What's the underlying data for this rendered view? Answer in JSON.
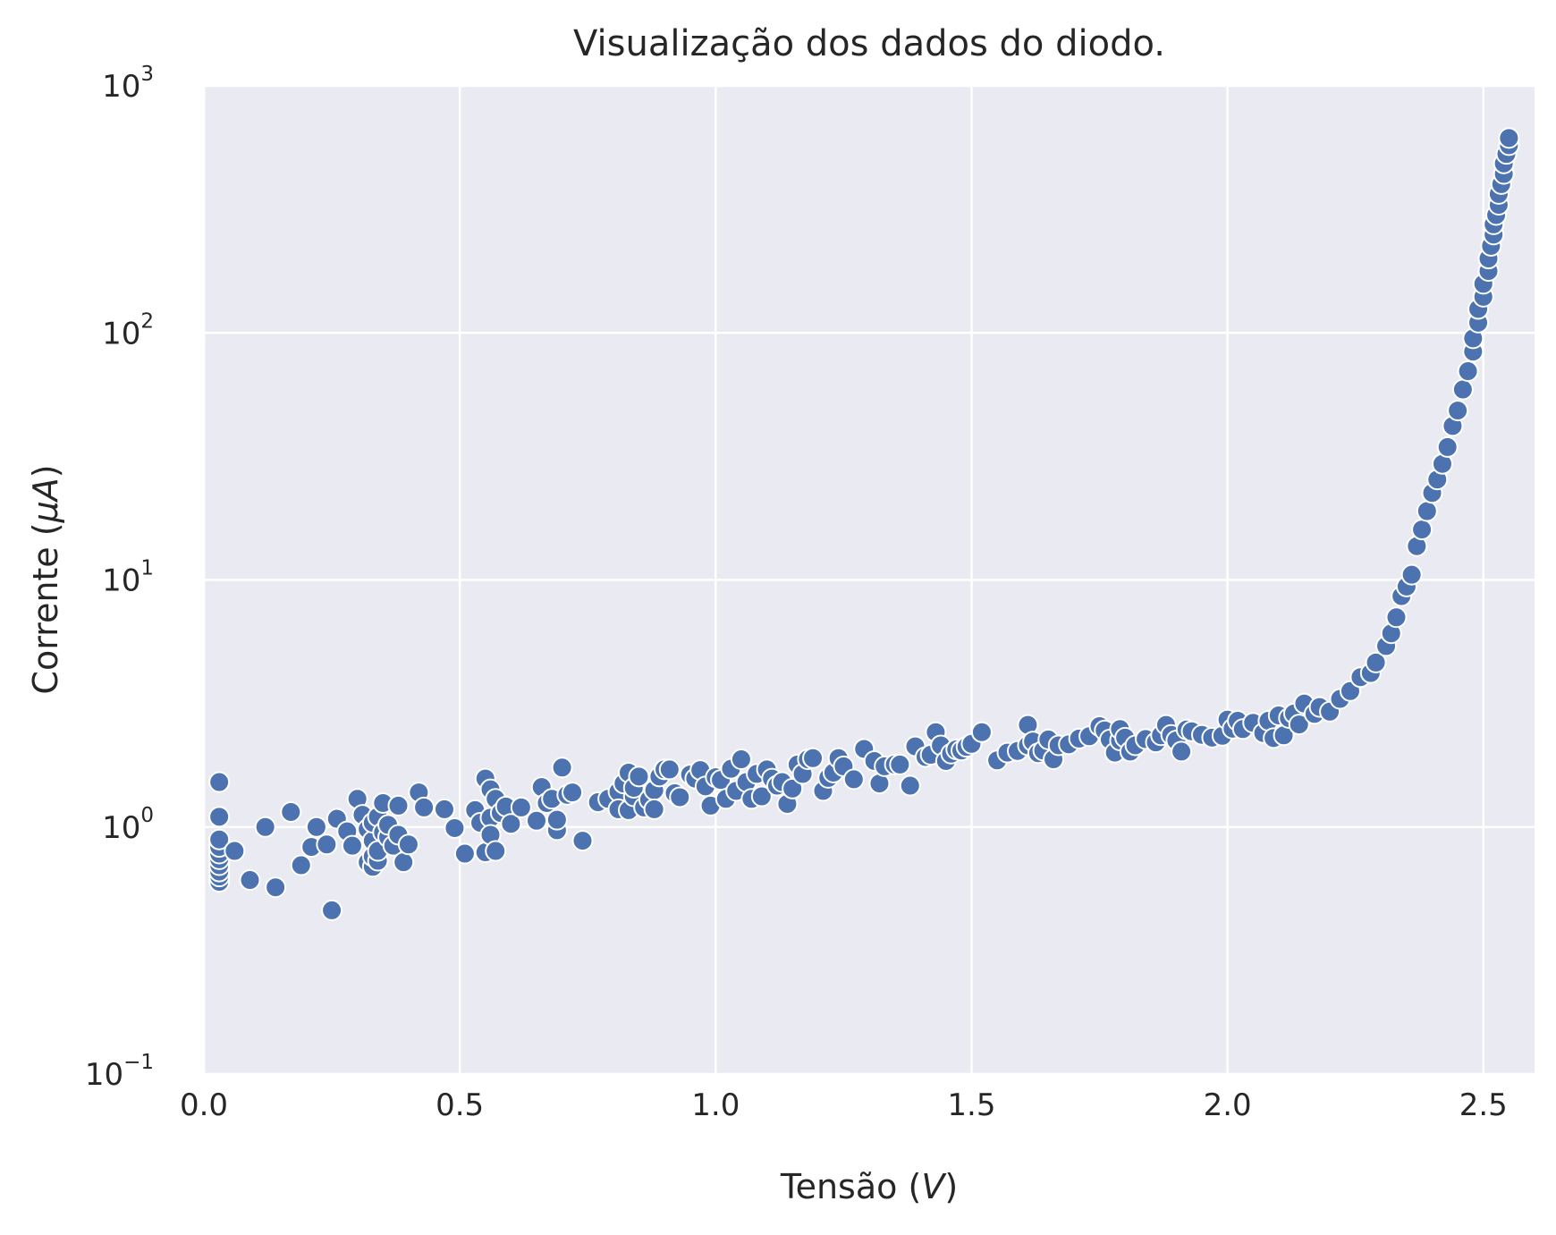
{
  "chart_data": {
    "type": "scatter",
    "title": "Visualização dos dados do diodo.",
    "xlabel": "Tensão ($V$)",
    "ylabel": "Corrente ($\\mu A$)",
    "xlim": [
      0.0,
      2.6
    ],
    "ylim": [
      0.1,
      1000
    ],
    "yscale": "log",
    "grid": true,
    "x_ticks": [
      "0.0",
      "0.5",
      "1.0",
      "1.5",
      "2.0",
      "2.5"
    ],
    "y_ticks": [
      {
        "base": "10",
        "exp": "−1"
      },
      {
        "base": "10",
        "exp": "0"
      },
      {
        "base": "10",
        "exp": "1"
      },
      {
        "base": "10",
        "exp": "2"
      },
      {
        "base": "10",
        "exp": "3"
      }
    ],
    "colors": {
      "background": "#eaeaf2",
      "marker": "#4c72b0",
      "marker_edge": "#ffffff",
      "grid": "#ffffff",
      "text": "#262626"
    },
    "points": [
      [
        0.03,
        0.6
      ],
      [
        0.03,
        0.63
      ],
      [
        0.03,
        0.66
      ],
      [
        0.03,
        0.7
      ],
      [
        0.03,
        0.74
      ],
      [
        0.03,
        0.78
      ],
      [
        0.03,
        0.83
      ],
      [
        0.03,
        0.89
      ],
      [
        0.03,
        1.1
      ],
      [
        0.03,
        1.52
      ],
      [
        0.06,
        0.8
      ],
      [
        0.09,
        0.61
      ],
      [
        0.12,
        1.0
      ],
      [
        0.14,
        0.57
      ],
      [
        0.17,
        1.15
      ],
      [
        0.19,
        0.7
      ],
      [
        0.21,
        0.83
      ],
      [
        0.22,
        1.0
      ],
      [
        0.24,
        0.85
      ],
      [
        0.25,
        0.46
      ],
      [
        0.26,
        1.08
      ],
      [
        0.28,
        0.96
      ],
      [
        0.29,
        0.84
      ],
      [
        0.3,
        1.3
      ],
      [
        0.31,
        1.12
      ],
      [
        0.32,
        0.72
      ],
      [
        0.32,
        0.98
      ],
      [
        0.33,
        0.69
      ],
      [
        0.33,
        0.76
      ],
      [
        0.33,
        0.88
      ],
      [
        0.33,
        1.04
      ],
      [
        0.34,
        1.1
      ],
      [
        0.34,
        0.73
      ],
      [
        0.34,
        0.8
      ],
      [
        0.35,
        0.95
      ],
      [
        0.35,
        1.25
      ],
      [
        0.36,
        0.91
      ],
      [
        0.36,
        1.02
      ],
      [
        0.37,
        0.84
      ],
      [
        0.38,
        1.22
      ],
      [
        0.38,
        0.93
      ],
      [
        0.39,
        0.72
      ],
      [
        0.4,
        0.85
      ],
      [
        0.42,
        1.38
      ],
      [
        0.43,
        1.2
      ],
      [
        0.47,
        1.18
      ],
      [
        0.49,
        0.99
      ],
      [
        0.51,
        0.78
      ],
      [
        0.53,
        1.17
      ],
      [
        0.54,
        1.04
      ],
      [
        0.55,
        1.57
      ],
      [
        0.55,
        0.79
      ],
      [
        0.56,
        1.42
      ],
      [
        0.56,
        1.09
      ],
      [
        0.56,
        0.93
      ],
      [
        0.57,
        1.3
      ],
      [
        0.57,
        0.8
      ],
      [
        0.58,
        1.14
      ],
      [
        0.59,
        1.21
      ],
      [
        0.6,
        1.03
      ],
      [
        0.62,
        1.2
      ],
      [
        0.65,
        1.06
      ],
      [
        0.66,
        1.45
      ],
      [
        0.67,
        1.25
      ],
      [
        0.68,
        1.3
      ],
      [
        0.69,
        0.97
      ],
      [
        0.69,
        1.07
      ],
      [
        0.7,
        1.74
      ],
      [
        0.71,
        1.35
      ],
      [
        0.72,
        1.38
      ],
      [
        0.74,
        0.88
      ],
      [
        0.77,
        1.26
      ],
      [
        0.79,
        1.3
      ],
      [
        0.81,
        1.39
      ],
      [
        0.81,
        1.18
      ],
      [
        0.82,
        1.5
      ],
      [
        0.83,
        1.66
      ],
      [
        0.83,
        1.17
      ],
      [
        0.84,
        1.33
      ],
      [
        0.84,
        1.44
      ],
      [
        0.85,
        1.6
      ],
      [
        0.86,
        1.2
      ],
      [
        0.87,
        1.29
      ],
      [
        0.88,
        1.41
      ],
      [
        0.88,
        1.18
      ],
      [
        0.89,
        1.6
      ],
      [
        0.9,
        1.71
      ],
      [
        0.91,
        1.71
      ],
      [
        0.92,
        1.37
      ],
      [
        0.93,
        1.32
      ],
      [
        0.95,
        1.63
      ],
      [
        0.96,
        1.57
      ],
      [
        0.97,
        1.7
      ],
      [
        0.98,
        1.46
      ],
      [
        0.99,
        1.22
      ],
      [
        1.0,
        1.59
      ],
      [
        1.01,
        1.55
      ],
      [
        1.02,
        1.3
      ],
      [
        1.03,
        1.72
      ],
      [
        1.04,
        1.4
      ],
      [
        1.05,
        1.88
      ],
      [
        1.06,
        1.52
      ],
      [
        1.07,
        1.3
      ],
      [
        1.08,
        1.64
      ],
      [
        1.09,
        1.33
      ],
      [
        1.1,
        1.71
      ],
      [
        1.11,
        1.57
      ],
      [
        1.12,
        1.47
      ],
      [
        1.13,
        1.52
      ],
      [
        1.14,
        1.24
      ],
      [
        1.15,
        1.43
      ],
      [
        1.16,
        1.79
      ],
      [
        1.17,
        1.64
      ],
      [
        1.18,
        1.88
      ],
      [
        1.19,
        1.9
      ],
      [
        1.21,
        1.4
      ],
      [
        1.22,
        1.58
      ],
      [
        1.23,
        1.66
      ],
      [
        1.24,
        1.9
      ],
      [
        1.25,
        1.76
      ],
      [
        1.27,
        1.56
      ],
      [
        1.29,
        2.07
      ],
      [
        1.31,
        1.85
      ],
      [
        1.32,
        1.5
      ],
      [
        1.33,
        1.76
      ],
      [
        1.35,
        1.79
      ],
      [
        1.36,
        1.79
      ],
      [
        1.38,
        1.47
      ],
      [
        1.39,
        2.12
      ],
      [
        1.41,
        1.92
      ],
      [
        1.42,
        1.96
      ],
      [
        1.43,
        2.42
      ],
      [
        1.44,
        2.14
      ],
      [
        1.45,
        1.85
      ],
      [
        1.46,
        1.98
      ],
      [
        1.47,
        2.06
      ],
      [
        1.48,
        2.04
      ],
      [
        1.49,
        2.11
      ],
      [
        1.5,
        2.17
      ],
      [
        1.52,
        2.42
      ],
      [
        1.55,
        1.86
      ],
      [
        1.57,
        2.0
      ],
      [
        1.59,
        2.03
      ],
      [
        1.61,
        2.14
      ],
      [
        1.61,
        2.59
      ],
      [
        1.62,
        2.22
      ],
      [
        1.63,
        1.99
      ],
      [
        1.64,
        2.04
      ],
      [
        1.65,
        2.26
      ],
      [
        1.66,
        1.88
      ],
      [
        1.67,
        2.14
      ],
      [
        1.69,
        2.16
      ],
      [
        1.71,
        2.28
      ],
      [
        1.73,
        2.33
      ],
      [
        1.75,
        2.56
      ],
      [
        1.76,
        2.46
      ],
      [
        1.77,
        2.26
      ],
      [
        1.78,
        2.0
      ],
      [
        1.79,
        2.24
      ],
      [
        1.79,
        2.49
      ],
      [
        1.8,
        2.3
      ],
      [
        1.81,
        2.02
      ],
      [
        1.82,
        2.14
      ],
      [
        1.84,
        2.27
      ],
      [
        1.86,
        2.2
      ],
      [
        1.87,
        2.35
      ],
      [
        1.88,
        2.59
      ],
      [
        1.89,
        2.36
      ],
      [
        1.9,
        2.24
      ],
      [
        1.91,
        2.02
      ],
      [
        1.92,
        2.48
      ],
      [
        1.93,
        2.44
      ],
      [
        1.95,
        2.36
      ],
      [
        1.97,
        2.3
      ],
      [
        1.99,
        2.34
      ],
      [
        2.0,
        2.72
      ],
      [
        2.01,
        2.5
      ],
      [
        2.02,
        2.69
      ],
      [
        2.03,
        2.49
      ],
      [
        2.05,
        2.64
      ],
      [
        2.07,
        2.4
      ],
      [
        2.08,
        2.69
      ],
      [
        2.09,
        2.29
      ],
      [
        2.1,
        2.83
      ],
      [
        2.11,
        2.35
      ],
      [
        2.12,
        2.76
      ],
      [
        2.13,
        2.88
      ],
      [
        2.14,
        2.6
      ],
      [
        2.15,
        3.16
      ],
      [
        2.17,
        2.87
      ],
      [
        2.18,
        3.06
      ],
      [
        2.2,
        2.93
      ],
      [
        2.22,
        3.3
      ],
      [
        2.24,
        3.55
      ],
      [
        2.26,
        4.04
      ],
      [
        2.28,
        4.2
      ],
      [
        2.29,
        4.63
      ],
      [
        2.31,
        5.4
      ],
      [
        2.32,
        6.08
      ],
      [
        2.33,
        7.06
      ],
      [
        2.34,
        8.6
      ],
      [
        2.35,
        9.4
      ],
      [
        2.36,
        10.5
      ],
      [
        2.37,
        13.7
      ],
      [
        2.38,
        16.0
      ],
      [
        2.39,
        19.0
      ],
      [
        2.4,
        22.5
      ],
      [
        2.41,
        25.5
      ],
      [
        2.42,
        29.5
      ],
      [
        2.43,
        34.5
      ],
      [
        2.44,
        42.0
      ],
      [
        2.45,
        48.5
      ],
      [
        2.46,
        59.0
      ],
      [
        2.47,
        70.0
      ],
      [
        2.48,
        84.0
      ],
      [
        2.48,
        95.0
      ],
      [
        2.49,
        110
      ],
      [
        2.49,
        125
      ],
      [
        2.5,
        140
      ],
      [
        2.5,
        158
      ],
      [
        2.51,
        178
      ],
      [
        2.51,
        200
      ],
      [
        2.515,
        225
      ],
      [
        2.52,
        250
      ],
      [
        2.52,
        275
      ],
      [
        2.525,
        300
      ],
      [
        2.53,
        330
      ],
      [
        2.53,
        365
      ],
      [
        2.535,
        400
      ],
      [
        2.54,
        440
      ],
      [
        2.54,
        485
      ],
      [
        2.545,
        530
      ],
      [
        2.55,
        575
      ],
      [
        2.55,
        615
      ]
    ]
  }
}
